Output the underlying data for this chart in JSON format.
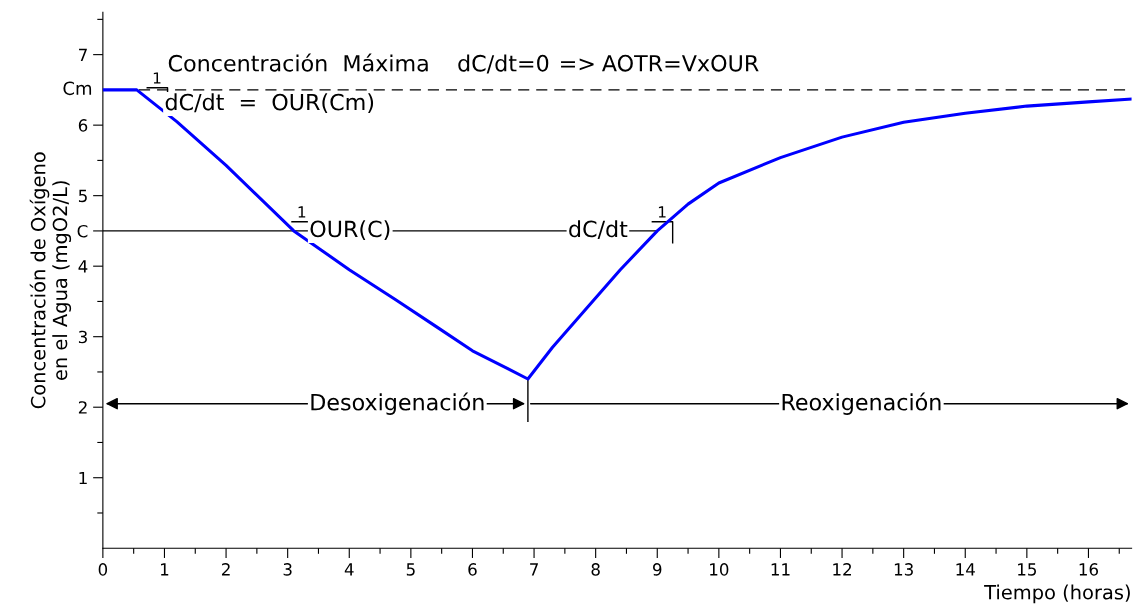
{
  "chart_data": {
    "type": "line",
    "xlabel": "Tiempo (horas)",
    "ylabel": "Concentración de Oxígeno\nen el Agua (mgO2/L)",
    "series": [
      {
        "color": "#0000ff",
        "x": [
          0,
          0.55,
          1.2,
          2.0,
          3.1,
          4.0,
          4.76,
          5.4,
          6.0,
          6.5,
          6.9,
          7.3,
          7.8,
          8.4,
          9.0,
          9.5,
          10.0,
          11.0,
          12.0,
          13.0,
          14.0,
          15.0,
          16.0,
          16.7
        ],
        "values": [
          6.5,
          6.5,
          6.05,
          5.43,
          4.5,
          3.95,
          3.52,
          3.15,
          2.8,
          2.58,
          2.4,
          2.85,
          3.35,
          3.95,
          4.5,
          4.88,
          5.18,
          5.54,
          5.83,
          6.04,
          6.17,
          6.27,
          6.33,
          6.37
        ]
      },
      {
        "color": "#000000",
        "x": [
          0,
          9.0
        ],
        "values": [
          4.5,
          4.5
        ]
      }
    ],
    "ref_lines": [
      {
        "axis": "y",
        "value": 6.5,
        "label": "Cm",
        "color": "#000000",
        "line_style": "dashed"
      }
    ],
    "xlim": [
      0,
      16.7
    ],
    "ylim": [
      0,
      7.6
    ],
    "xticks": [
      0,
      {
        "value": 0.5,
        "label": null
      },
      1,
      {
        "value": 1.5,
        "label": null
      },
      2,
      {
        "value": 2.5,
        "label": null
      },
      3,
      {
        "value": 3.5,
        "label": null
      },
      4,
      {
        "value": 4.5,
        "label": null
      },
      5,
      {
        "value": 5.5,
        "label": null
      },
      6,
      {
        "value": 6.5,
        "label": null
      },
      7,
      {
        "value": 7.5,
        "label": null
      },
      8,
      {
        "value": 8.5,
        "label": null
      },
      9,
      {
        "value": 9.5,
        "label": null
      },
      10,
      {
        "value": 10.5,
        "label": null
      },
      11,
      {
        "value": 11.5,
        "label": null
      },
      12,
      {
        "value": 12.5,
        "label": null
      },
      13,
      {
        "value": 13.5,
        "label": null
      },
      14,
      {
        "value": 14.5,
        "label": null
      },
      15,
      {
        "value": 15.5,
        "label": null
      },
      16,
      {
        "value": 16.5,
        "label": null
      }
    ],
    "yticks": [
      {
        "value": 0.5,
        "label": null
      },
      1,
      {
        "value": 1.5,
        "label": null
      },
      2,
      {
        "value": 2.5,
        "label": null
      },
      3,
      {
        "value": 3.5,
        "label": null
      },
      4,
      {
        "value": 4.5,
        "label": "C"
      },
      5,
      {
        "value": 5.5,
        "label": null
      },
      6,
      7,
      {
        "value": 7.5,
        "label": null
      }
    ],
    "grid": false,
    "legend": false,
    "annotations": [
      "Concentración  Máxima",
      "dC/dt=0",
      "=>",
      "AOTR=VxOUR",
      "1",
      {
        "text": "dC/dt  =  OUR(Cm)",
        "x": 1.0,
        "y": 6.3
      },
      "1",
      {
        "text": "OUR(C)",
        "x": 3.35,
        "y": 4.5
      },
      {
        "text": "dC/dt",
        "x": 7.55,
        "y": 4.5
      },
      "1",
      "Desoxigenación",
      "Reoxigenación"
    ]
  }
}
